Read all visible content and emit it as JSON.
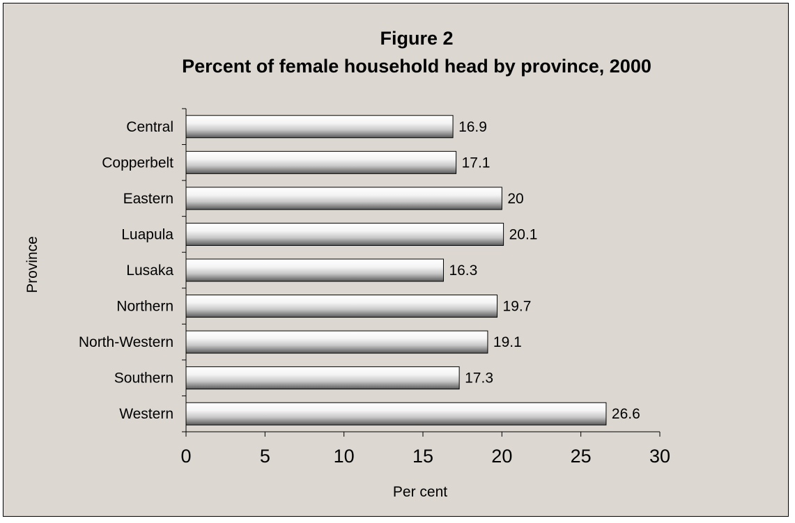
{
  "chart_data": {
    "type": "bar",
    "orientation": "horizontal",
    "title_line1": "Figure 2",
    "title_line2": "Percent of female household head by province, 2000",
    "xlabel": "Per cent",
    "ylabel": "Province",
    "categories": [
      "Central",
      "Copperbelt",
      "Eastern",
      "Luapula",
      "Lusaka",
      "Northern",
      "North-Western",
      "Southern",
      "Western"
    ],
    "values": [
      16.9,
      17.1,
      20,
      20.1,
      16.3,
      19.7,
      19.1,
      17.3,
      26.6
    ],
    "data_labels": [
      "16.9",
      "17.1",
      "20",
      "20.1",
      "16.3",
      "19.7",
      "19.1",
      "17.3",
      "26.6"
    ],
    "xlim": [
      0,
      30
    ],
    "xticks": [
      "0",
      "5",
      "10",
      "15",
      "20",
      "25",
      "30"
    ],
    "grid": false,
    "legend": "none",
    "colors": {
      "background": "#dcd8d1",
      "bar_light": "#ffffff",
      "bar_dark": "#5a5a5a",
      "axis": "#000000"
    }
  }
}
